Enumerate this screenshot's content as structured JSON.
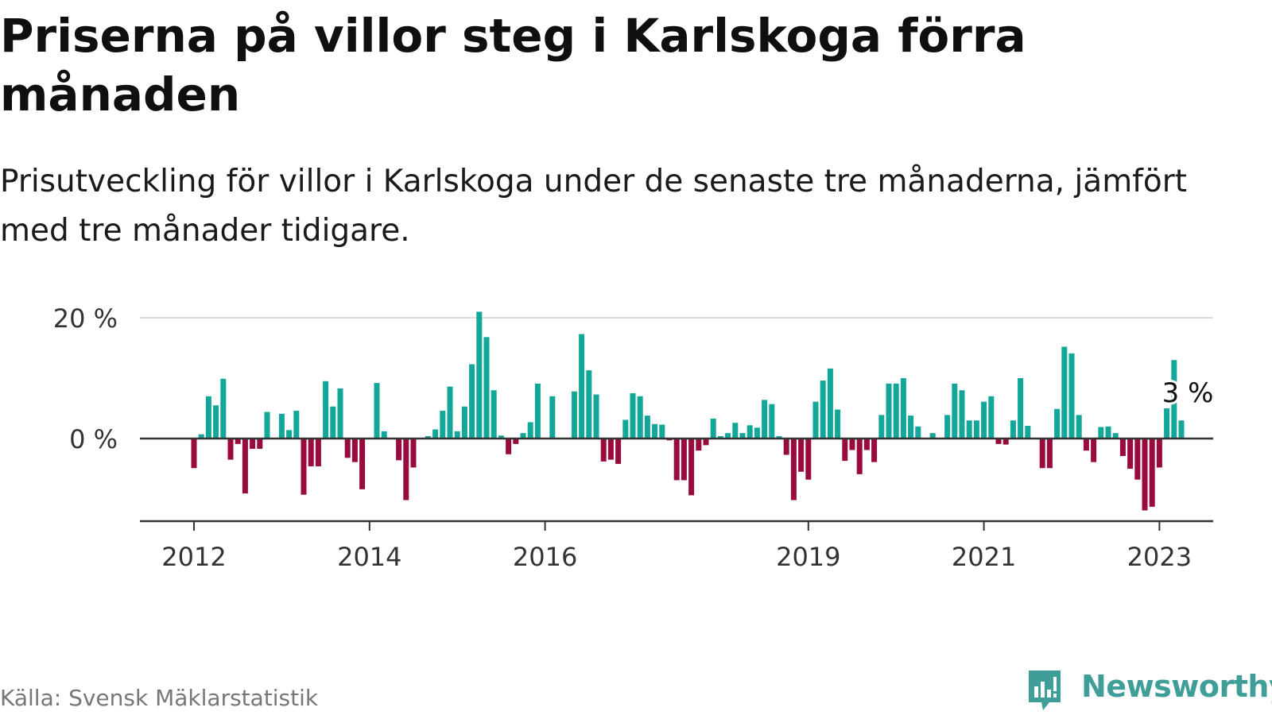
{
  "title": "Priserna på villor steg i Karlskoga förra månaden",
  "subtitle": "Prisutveckling för villor i Karlskoga under de senaste tre månaderna, jämfört med tre månader tidigare.",
  "source": "Källa: Svensk Mäklarstatistik",
  "brand": {
    "name": "Newsworthy",
    "icon": "newsworthy-logo-icon",
    "color": "#3f9f98"
  },
  "colors": {
    "positive": "#13a79a",
    "negative": "#990a3f",
    "grid": "#dddddd",
    "axis": "#333333",
    "text": "#333333"
  },
  "chart_data": {
    "type": "bar",
    "x_start": "2012-01",
    "frequency": "monthly",
    "ylim": [
      -14,
      21
    ],
    "yticks": [
      0,
      20
    ],
    "ytick_labels": [
      "0 %",
      "20 %"
    ],
    "xtick_labels": [
      {
        "label": "2012",
        "index": 0
      },
      {
        "label": "2014",
        "index": 24
      },
      {
        "label": "2016",
        "index": 48
      },
      {
        "label": "2019",
        "index": 84
      },
      {
        "label": "2021",
        "index": 108
      },
      {
        "label": "2023",
        "index": 132
      }
    ],
    "values": [
      -4.9,
      0.7,
      7.0,
      5.5,
      9.9,
      -3.5,
      -0.9,
      -9.1,
      -1.7,
      -1.7,
      4.4,
      0.0,
      4.1,
      1.4,
      4.6,
      -9.3,
      -4.6,
      -4.6,
      9.5,
      5.3,
      8.3,
      -3.2,
      -3.9,
      -8.4,
      0.0,
      9.2,
      1.2,
      0.0,
      -3.6,
      -10.2,
      -4.8,
      0.0,
      0.4,
      1.5,
      4.6,
      8.6,
      1.2,
      5.3,
      12.3,
      21.0,
      16.8,
      8.0,
      0.5,
      -2.6,
      -0.9,
      0.9,
      2.7,
      9.1,
      0.0,
      7.0,
      0.0,
      0.0,
      7.8,
      17.3,
      11.3,
      7.3,
      -3.8,
      -3.5,
      -4.2,
      3.1,
      7.5,
      7.0,
      3.8,
      2.4,
      2.3,
      -0.3,
      -6.9,
      -6.9,
      -9.4,
      -2.0,
      -1.1,
      3.3,
      0.4,
      0.9,
      2.6,
      0.9,
      2.2,
      1.8,
      6.4,
      5.7,
      0.4,
      -2.7,
      -10.2,
      -5.5,
      -6.8,
      6.1,
      9.6,
      11.6,
      4.8,
      -3.7,
      -1.9,
      -5.9,
      -1.9,
      -3.9,
      3.9,
      9.1,
      9.1,
      10.0,
      3.8,
      2.0,
      0.0,
      0.9,
      0.0,
      3.9,
      9.1,
      8.0,
      3.0,
      3.0,
      6.1,
      7.0,
      -0.9,
      -1.0,
      3.0,
      10.0,
      2.1,
      0.0,
      -4.9,
      -4.9,
      4.9,
      15.2,
      14.1,
      3.9,
      -2.0,
      -3.9,
      1.9,
      2.0,
      0.9,
      -2.9,
      -5.0,
      -6.8,
      -11.9,
      -11.3,
      -4.8,
      5.0,
      13.0,
      3.0
    ],
    "last_value_label": "3 %"
  }
}
